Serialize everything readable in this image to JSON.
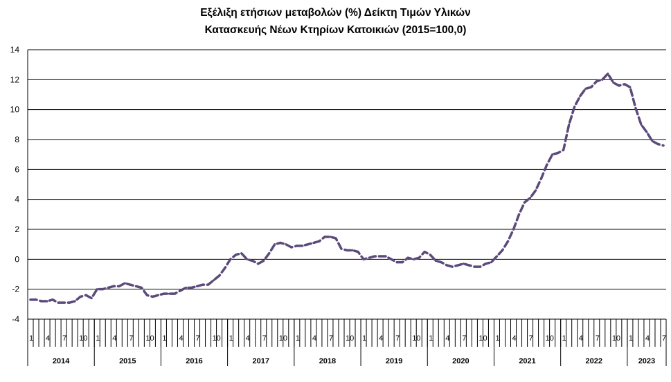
{
  "chart_data": {
    "type": "line",
    "title_lines": [
      "Εξέλιξη ετήσιων μεταβολών (%) Δείκτη Τιμών Υλικών",
      "Κατασκευής Νέων Κτηρίων Κατοικιών (2015=100,0)"
    ],
    "xlabel": "",
    "ylabel": "",
    "ylim": [
      -4,
      14
    ],
    "yticks": [
      "14",
      "12",
      "10",
      "8",
      "6",
      "4",
      "2",
      "0",
      "-2",
      "-4"
    ],
    "ytick_values": [
      14,
      12,
      10,
      8,
      6,
      4,
      2,
      0,
      -2,
      -4
    ],
    "grid": true,
    "legend": "none",
    "line_color": "#5b4a7a",
    "years": [
      "2014",
      "2015",
      "2016",
      "2017",
      "2018",
      "2019",
      "2020",
      "2021",
      "2022",
      "2023"
    ],
    "year_month_counts": [
      12,
      12,
      12,
      12,
      12,
      12,
      12,
      12,
      12,
      7
    ],
    "month_tick_labels": [
      "1",
      "4",
      "7",
      "10"
    ],
    "series": [
      {
        "values": [
          -2.7,
          -2.7,
          -2.8,
          -2.8,
          -2.7,
          -2.9,
          -2.9,
          -2.9,
          -2.8,
          -2.5,
          -2.4,
          -2.6,
          -2.0,
          -2.0,
          -1.9,
          -1.8,
          -1.8,
          -1.6,
          -1.7,
          -1.8,
          -1.9,
          -2.4,
          -2.5,
          -2.4,
          -2.3,
          -2.3,
          -2.3,
          -2.1,
          -1.9,
          -1.9,
          -1.8,
          -1.7,
          -1.7,
          -1.4,
          -1.1,
          -0.6,
          0.0,
          0.3,
          0.4,
          0.0,
          -0.1,
          -0.3,
          -0.1,
          0.4,
          1.0,
          1.1,
          1.0,
          0.8,
          0.9,
          0.9,
          1.0,
          1.1,
          1.2,
          1.5,
          1.5,
          1.4,
          0.7,
          0.6,
          0.6,
          0.5,
          0.0,
          0.1,
          0.2,
          0.2,
          0.2,
          0.0,
          -0.2,
          -0.2,
          0.1,
          0.0,
          0.1,
          0.5,
          0.3,
          -0.1,
          -0.2,
          -0.4,
          -0.5,
          -0.4,
          -0.3,
          -0.4,
          -0.5,
          -0.5,
          -0.3,
          -0.2,
          0.2,
          0.6,
          1.2,
          2.0,
          3.0,
          3.8,
          4.1,
          4.6,
          5.4,
          6.3,
          7.0,
          7.1,
          7.3,
          9.0,
          10.2,
          10.9,
          11.4,
          11.5,
          11.9,
          12.0,
          12.4,
          11.8,
          11.6,
          11.7,
          11.5,
          10.1,
          9.0,
          8.5,
          7.9,
          7.7,
          7.6
        ]
      }
    ]
  }
}
